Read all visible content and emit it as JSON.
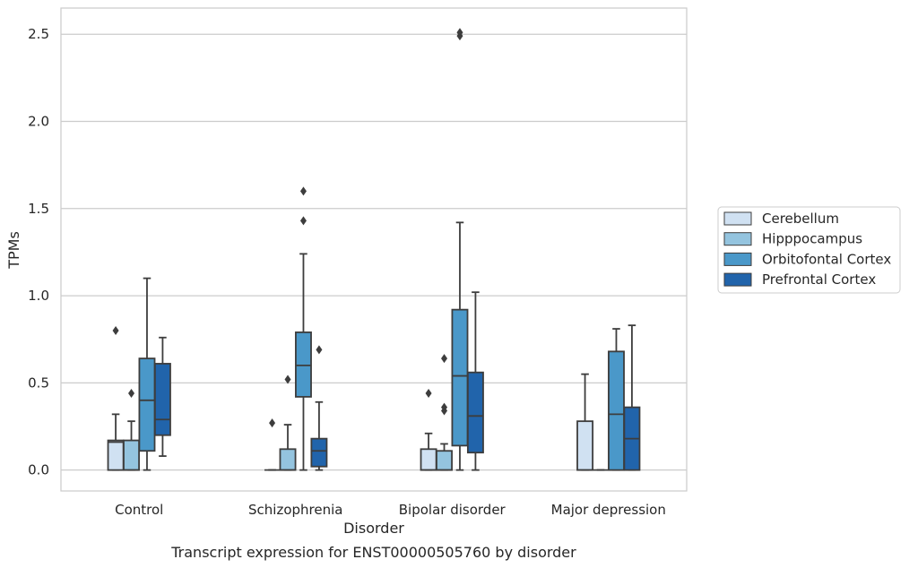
{
  "chart_data": {
    "type": "box",
    "xlabel": "Disorder",
    "ylabel": "TPMs",
    "caption": "Transcript expression for ENST00000505760 by disorder",
    "ylim": [
      -0.12,
      2.65
    ],
    "yticks": [
      "0.0",
      "0.5",
      "1.0",
      "1.5",
      "2.0",
      "2.5"
    ],
    "grid": "horizontal",
    "legend_position": "right",
    "categories": [
      "Control",
      "Schizophrenia",
      "Bipolar disorder",
      "Major depression"
    ],
    "series": [
      {
        "name": "Cerebellum",
        "color": "#d0e1f2",
        "boxes": [
          {
            "min": 0.0,
            "q1": 0.0,
            "median": 0.16,
            "q3": 0.17,
            "max": 0.32,
            "outliers": [
              0.8
            ]
          },
          {
            "min": 0.0,
            "q1": 0.0,
            "median": 0.0,
            "q3": 0.0,
            "max": 0.0,
            "outliers": [
              0.27
            ]
          },
          {
            "min": 0.0,
            "q1": 0.0,
            "median": 0.0,
            "q3": 0.12,
            "max": 0.21,
            "outliers": [
              0.44
            ]
          },
          {
            "min": 0.0,
            "q1": 0.0,
            "median": 0.0,
            "q3": 0.28,
            "max": 0.55,
            "outliers": []
          }
        ]
      },
      {
        "name": "Hipppocampus",
        "color": "#94c4df",
        "boxes": [
          {
            "min": 0.0,
            "q1": 0.0,
            "median": 0.0,
            "q3": 0.17,
            "max": 0.28,
            "outliers": [
              0.44
            ]
          },
          {
            "min": 0.0,
            "q1": 0.0,
            "median": 0.0,
            "q3": 0.12,
            "max": 0.26,
            "outliers": [
              0.52
            ]
          },
          {
            "min": 0.0,
            "q1": 0.0,
            "median": 0.0,
            "q3": 0.11,
            "max": 0.15,
            "outliers": [
              0.34,
              0.36,
              0.64
            ]
          },
          {
            "min": 0.0,
            "q1": 0.0,
            "median": 0.0,
            "q3": 0.0,
            "max": 0.0,
            "outliers": []
          }
        ]
      },
      {
        "name": "Orbitofontal Cortex",
        "color": "#4a98c9",
        "boxes": [
          {
            "min": 0.0,
            "q1": 0.11,
            "median": 0.4,
            "q3": 0.64,
            "max": 1.1,
            "outliers": []
          },
          {
            "min": 0.0,
            "q1": 0.42,
            "median": 0.6,
            "q3": 0.79,
            "max": 1.24,
            "outliers": [
              1.43,
              1.6
            ]
          },
          {
            "min": 0.0,
            "q1": 0.14,
            "median": 0.54,
            "q3": 0.92,
            "max": 1.42,
            "outliers": [
              2.49,
              2.51
            ]
          },
          {
            "min": 0.0,
            "q1": 0.0,
            "median": 0.32,
            "q3": 0.68,
            "max": 0.81,
            "outliers": []
          }
        ]
      },
      {
        "name": "Prefrontal Cortex",
        "color": "#2164ab",
        "boxes": [
          {
            "min": 0.08,
            "q1": 0.2,
            "median": 0.29,
            "q3": 0.61,
            "max": 0.76,
            "outliers": []
          },
          {
            "min": 0.0,
            "q1": 0.02,
            "median": 0.11,
            "q3": 0.18,
            "max": 0.39,
            "outliers": [
              0.69
            ]
          },
          {
            "min": 0.0,
            "q1": 0.1,
            "median": 0.31,
            "q3": 0.56,
            "max": 1.02,
            "outliers": []
          },
          {
            "min": 0.0,
            "q1": 0.0,
            "median": 0.18,
            "q3": 0.36,
            "max": 0.83,
            "outliers": []
          }
        ]
      }
    ]
  }
}
